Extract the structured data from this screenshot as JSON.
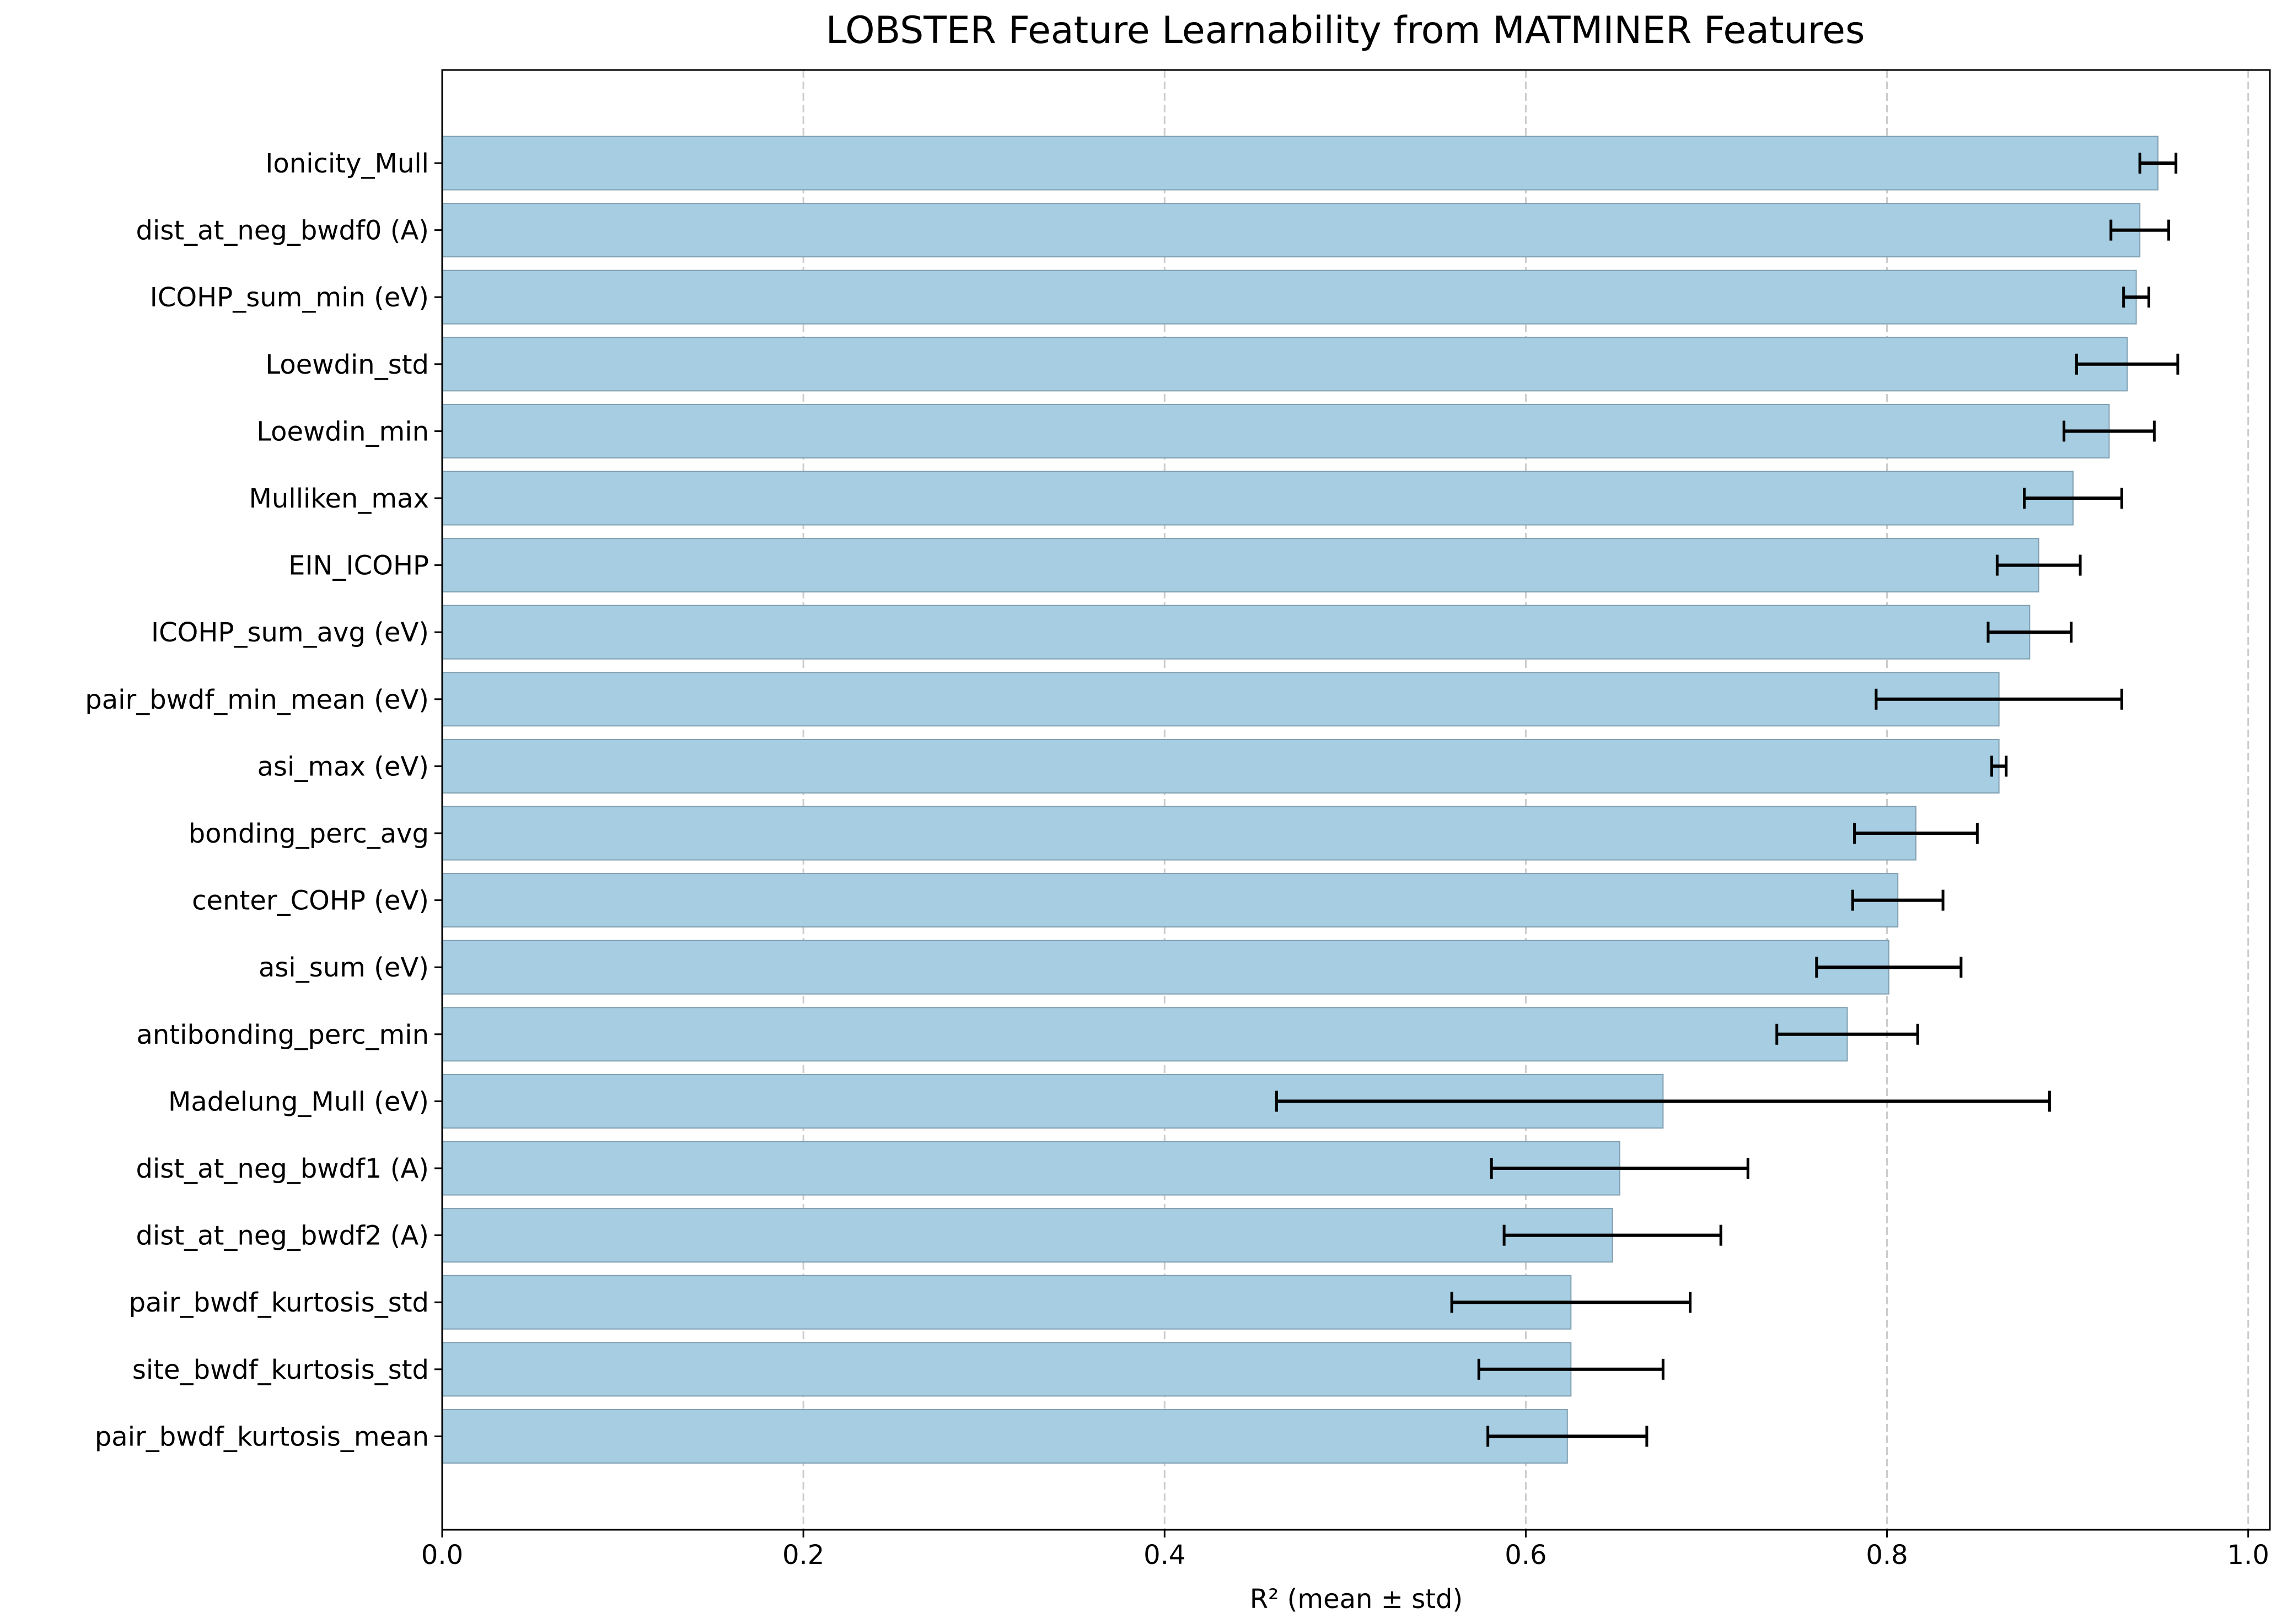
{
  "chart_data": {
    "type": "bar",
    "orientation": "horizontal",
    "title": "LOBSTER Feature Learnability from MATMINER Features",
    "xlabel": "R² (mean ± std)",
    "ylabel": "",
    "xlim": [
      0,
      1.012
    ],
    "xticks": [
      0.0,
      0.2,
      0.4,
      0.6,
      0.8,
      1.0
    ],
    "xtick_labels": [
      "0.0",
      "0.2",
      "0.4",
      "0.6",
      "0.8",
      "1.0"
    ],
    "grid": "x, dashed",
    "bar_color": "#a6cde2",
    "bar_edge_color": "#7f9fb0",
    "grid_color": "#cccccc",
    "errorbar_color": "#000000",
    "categories": [
      "Ionicity_Mull",
      "dist_at_neg_bwdf0 (A)",
      "ICOHP_sum_min (eV)",
      "Loewdin_std",
      "Loewdin_min",
      "Mulliken_max",
      "EIN_ICOHP",
      "ICOHP_sum_avg (eV)",
      "pair_bwdf_min_mean (eV)",
      "asi_max (eV)",
      "bonding_perc_avg",
      "center_COHP (eV)",
      "asi_sum (eV)",
      "antibonding_perc_min",
      "Madelung_Mull (eV)",
      "dist_at_neg_bwdf1 (A)",
      "dist_at_neg_bwdf2 (A)",
      "pair_bwdf_kurtosis_std",
      "site_bwdf_kurtosis_std",
      "pair_bwdf_kurtosis_mean"
    ],
    "values": [
      0.95,
      0.94,
      0.938,
      0.933,
      0.923,
      0.903,
      0.884,
      0.879,
      0.862,
      0.862,
      0.816,
      0.806,
      0.801,
      0.778,
      0.676,
      0.652,
      0.648,
      0.625,
      0.625,
      0.623
    ],
    "std": [
      0.01,
      0.016,
      0.007,
      0.028,
      0.025,
      0.027,
      0.023,
      0.023,
      0.068,
      0.004,
      0.034,
      0.025,
      0.04,
      0.039,
      0.214,
      0.071,
      0.06,
      0.066,
      0.051,
      0.044
    ]
  }
}
